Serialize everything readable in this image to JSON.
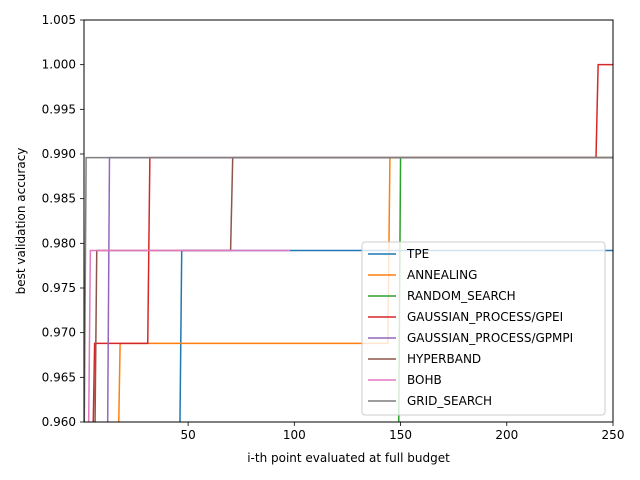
{
  "chart_data": {
    "type": "line",
    "title": "",
    "xlabel": "i-th point evaluated at full budget",
    "ylabel": "best validation accuracy",
    "xlim": [
      1,
      250
    ],
    "ylim": [
      0.96,
      1.005
    ],
    "xticks": [
      50,
      100,
      150,
      200,
      250
    ],
    "yticks": [
      0.96,
      0.965,
      0.97,
      0.975,
      0.98,
      0.985,
      0.99,
      0.995,
      1.0,
      1.005
    ],
    "yticks_labels": [
      "0.960",
      "0.965",
      "0.970",
      "0.975",
      "0.980",
      "0.985",
      "0.990",
      "0.995",
      "1.000",
      "1.005"
    ],
    "grid": false,
    "legend_position": "lower-right",
    "series": [
      {
        "name": "TPE",
        "color": "#1f77b4",
        "points": [
          [
            46,
            0.956
          ],
          [
            47,
            0.9792
          ],
          [
            250,
            0.9792
          ]
        ]
      },
      {
        "name": "ANNEALING",
        "color": "#ff7f0e",
        "points": [
          [
            17,
            0.955
          ],
          [
            18,
            0.9688
          ],
          [
            144,
            0.9688
          ],
          [
            145,
            0.9896
          ],
          [
            250,
            0.9896
          ]
        ]
      },
      {
        "name": "RANDOM_SEARCH",
        "color": "#2ca02c",
        "points": [
          [
            149,
            0.955
          ],
          [
            150,
            0.9896
          ],
          [
            250,
            0.9896
          ]
        ]
      },
      {
        "name": "GAUSSIAN_PROCESS/GPEI",
        "color": "#d62728",
        "points": [
          [
            5,
            0.955
          ],
          [
            6,
            0.9688
          ],
          [
            31,
            0.9688
          ],
          [
            32,
            0.9896
          ],
          [
            242,
            0.9896
          ],
          [
            243,
            1.0
          ],
          [
            250,
            1.0
          ]
        ]
      },
      {
        "name": "GAUSSIAN_PROCESS/GPMPI",
        "color": "#9467bd",
        "points": [
          [
            12,
            0.955
          ],
          [
            13,
            0.9896
          ],
          [
            250,
            0.9896
          ]
        ]
      },
      {
        "name": "HYPERBAND",
        "color": "#8c564b",
        "points": [
          [
            6,
            0.955
          ],
          [
            7,
            0.9792
          ],
          [
            70,
            0.9792
          ],
          [
            71,
            0.9896
          ],
          [
            250,
            0.9896
          ]
        ]
      },
      {
        "name": "BOHB",
        "color": "#e377c2",
        "points": [
          [
            3,
            0.955
          ],
          [
            4,
            0.9792
          ],
          [
            98,
            0.9792
          ]
        ]
      },
      {
        "name": "GRID_SEARCH",
        "color": "#7f7f7f",
        "points": [
          [
            1,
            0.955
          ],
          [
            2,
            0.9896
          ],
          [
            250,
            0.9896
          ]
        ]
      }
    ]
  }
}
